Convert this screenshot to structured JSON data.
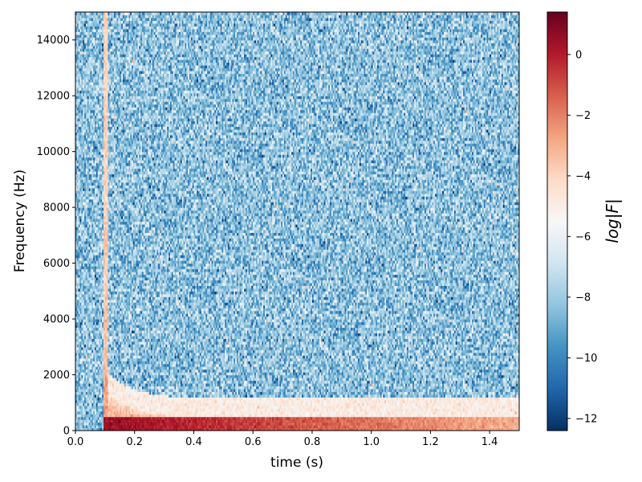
{
  "chart_data": {
    "type": "heatmap",
    "title": "",
    "xlabel": "time (s)",
    "ylabel": "Frequency (Hz)",
    "xlim": [
      0.0,
      1.5
    ],
    "ylim": [
      0,
      15000
    ],
    "x_ticks": [
      {
        "value": 0.0,
        "label": "0.0"
      },
      {
        "value": 0.2,
        "label": "0.2"
      },
      {
        "value": 0.4,
        "label": "0.4"
      },
      {
        "value": 0.6,
        "label": "0.6"
      },
      {
        "value": 0.8,
        "label": "0.8"
      },
      {
        "value": 1.0,
        "label": "1.0"
      },
      {
        "value": 1.2,
        "label": "1.2"
      },
      {
        "value": 1.4,
        "label": "1.4"
      }
    ],
    "y_ticks": [
      {
        "value": 0,
        "label": "0"
      },
      {
        "value": 2000,
        "label": "2000"
      },
      {
        "value": 4000,
        "label": "4000"
      },
      {
        "value": 6000,
        "label": "6000"
      },
      {
        "value": 8000,
        "label": "8000"
      },
      {
        "value": 10000,
        "label": "10000"
      },
      {
        "value": 12000,
        "label": "12000"
      },
      {
        "value": 14000,
        "label": "14000"
      }
    ],
    "colorbar": {
      "label": "log|F|",
      "colormap": "RdBu_r",
      "range": [
        -12.4,
        1.4
      ],
      "ticks": [
        {
          "value": 0,
          "label": "0"
        },
        {
          "value": -2,
          "label": "−2"
        },
        {
          "value": -4,
          "label": "−4"
        },
        {
          "value": -6,
          "label": "−6"
        },
        {
          "value": -8,
          "label": "−8"
        },
        {
          "value": -10,
          "label": "−10"
        },
        {
          "value": -12,
          "label": "−12"
        }
      ],
      "stops": [
        "#053061",
        "#2166ac",
        "#4393c3",
        "#92c5de",
        "#d1e5f0",
        "#f7f7f7",
        "#fddbc7",
        "#f4a582",
        "#d6604d",
        "#b2182b",
        "#67001f"
      ]
    },
    "field_summary": {
      "background_level": -8.3,
      "background_noise": 1.3,
      "onset_time_s": 0.095,
      "low_frequency_band_hz": [
        0,
        450
      ],
      "low_frequency_band_level_at_onset": 0.5,
      "low_frequency_band_level_at_end": -3.0,
      "transient_edge_level_at_onset": -4.0
    }
  }
}
